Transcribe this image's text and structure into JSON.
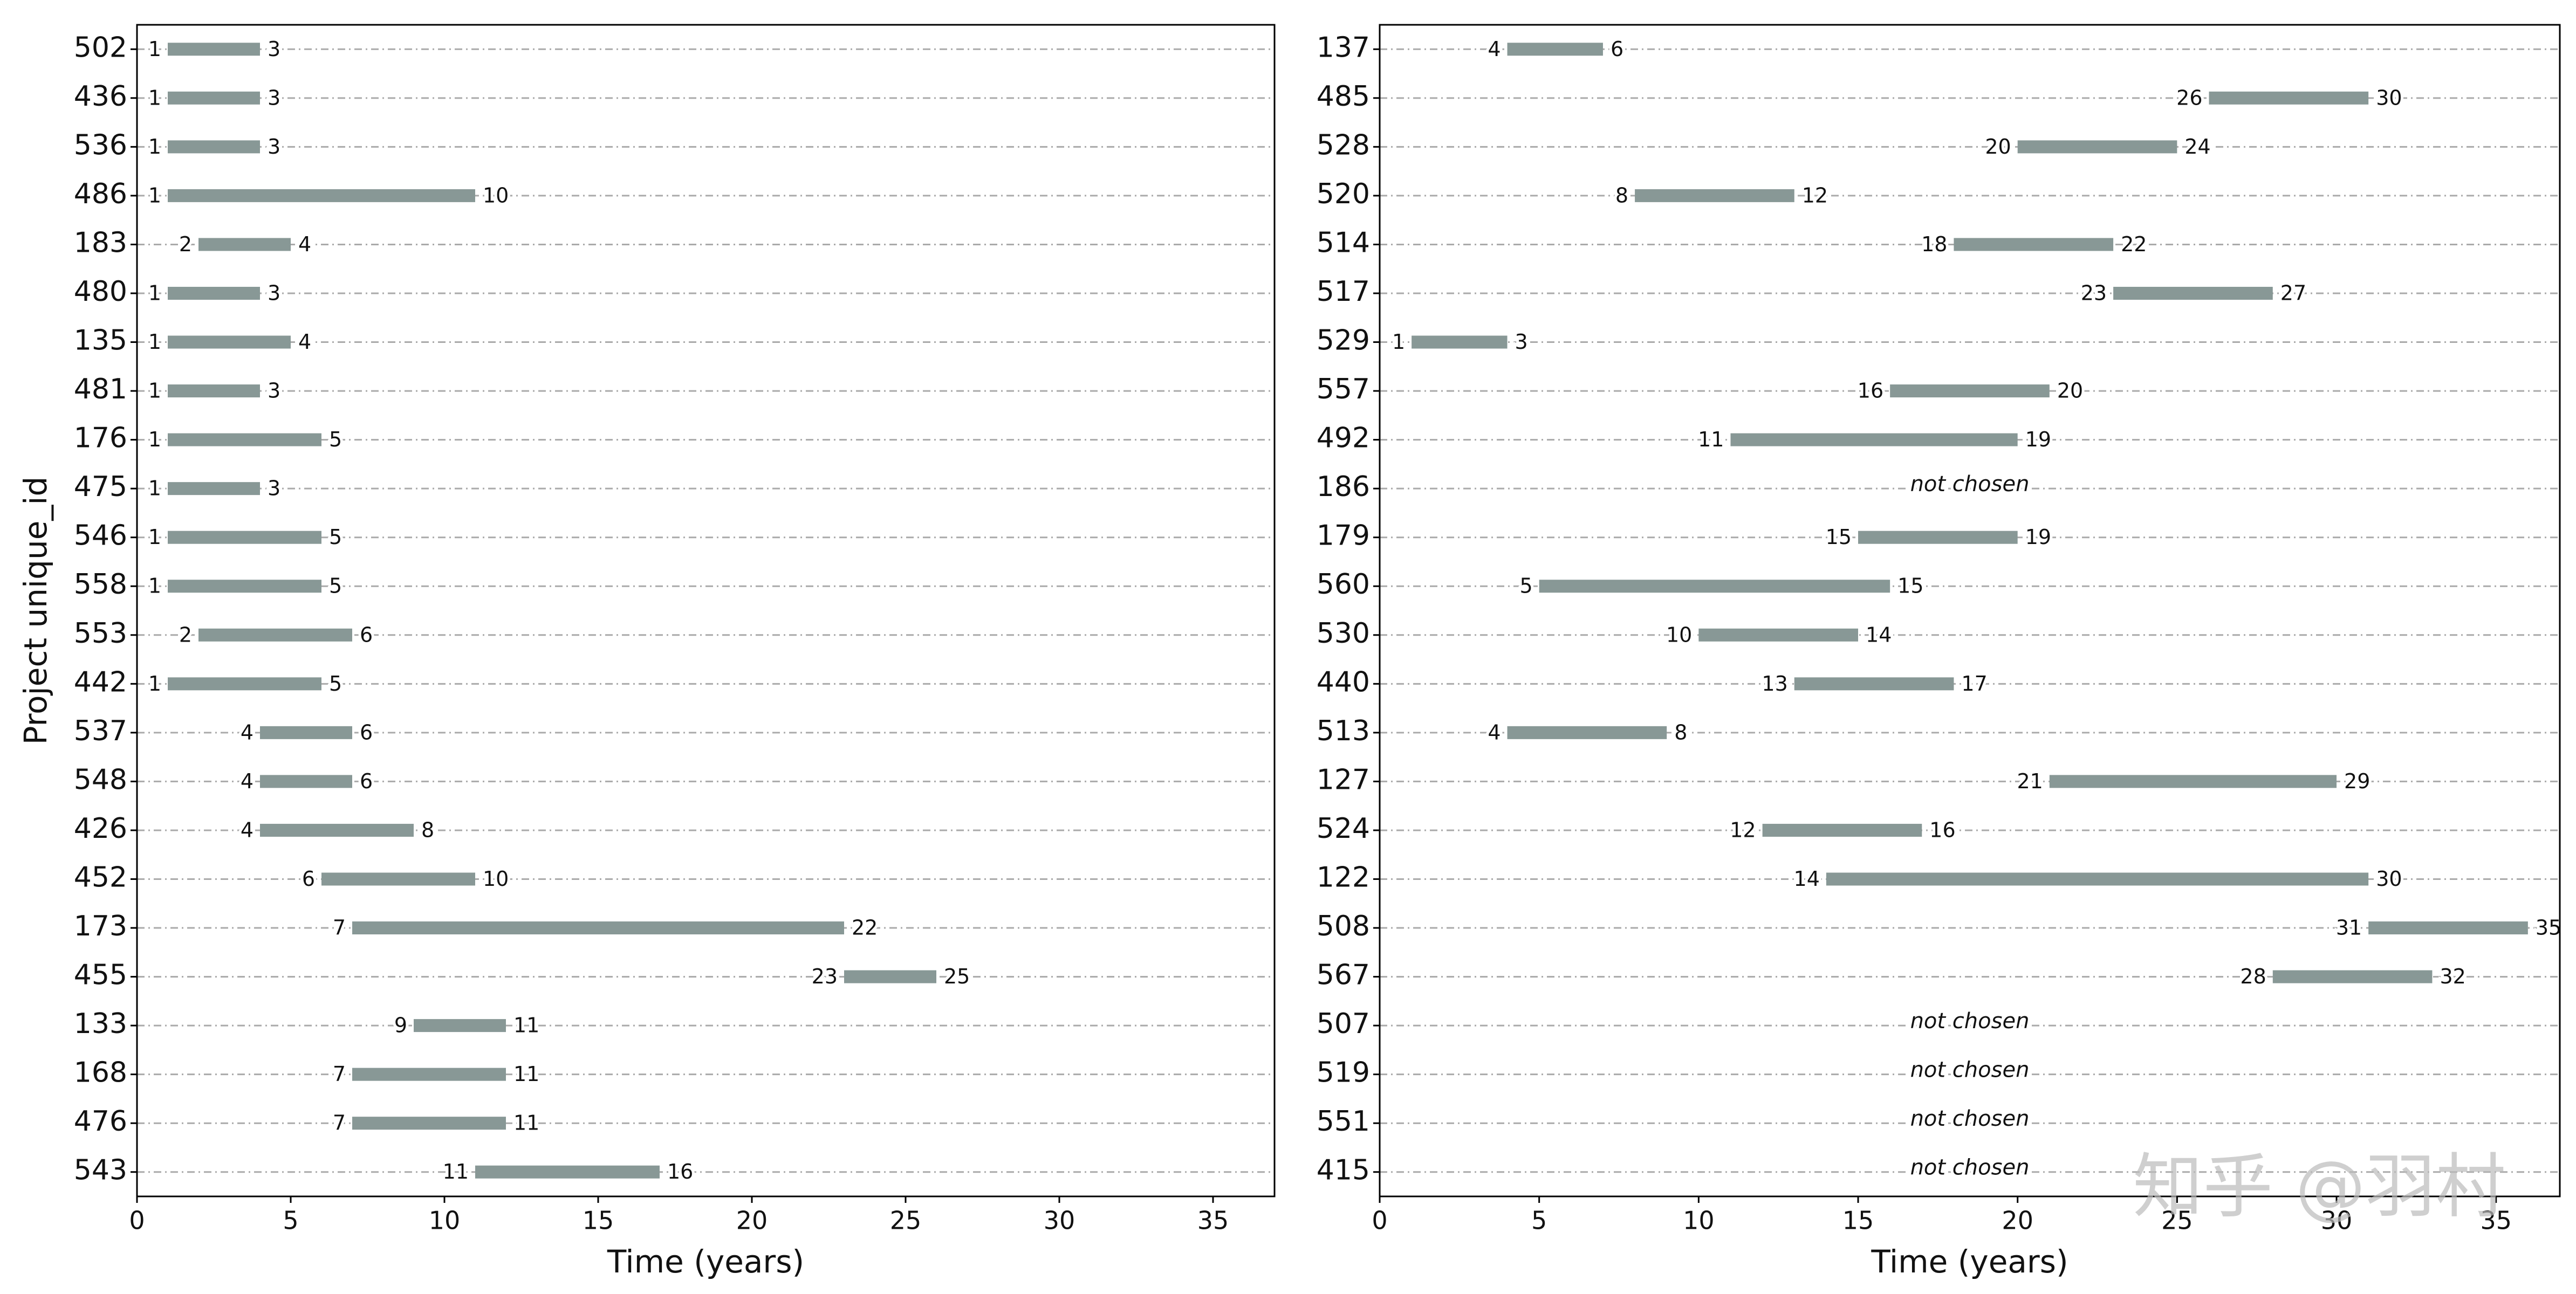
{
  "chart_data": [
    {
      "type": "gantt",
      "ylabel": "Project unique_id",
      "xlabel": "Time (years)",
      "categories": [
        "502",
        "436",
        "536",
        "486",
        "183",
        "480",
        "135",
        "481",
        "176",
        "475",
        "546",
        "558",
        "553",
        "442",
        "537",
        "548",
        "426",
        "452",
        "173",
        "455",
        "133",
        "168",
        "476",
        "543"
      ],
      "start": [
        1,
        1,
        1,
        1,
        2,
        1,
        1,
        1,
        1,
        1,
        1,
        1,
        2,
        1,
        4,
        4,
        4,
        6,
        7,
        23,
        9,
        7,
        7,
        11
      ],
      "end": [
        3,
        3,
        3,
        10,
        4,
        3,
        4,
        3,
        5,
        3,
        5,
        5,
        6,
        5,
        6,
        6,
        8,
        10,
        22,
        25,
        11,
        11,
        11,
        16
      ],
      "color": "#889896",
      "xlim": [
        0,
        37
      ],
      "xticks": [
        0,
        5,
        10,
        15,
        20,
        25,
        30,
        35
      ],
      "grid": true
    },
    {
      "type": "gantt",
      "xlabel": "Time (years)",
      "categories": [
        "137",
        "485",
        "528",
        "520",
        "514",
        "517",
        "529",
        "557",
        "492",
        "186",
        "179",
        "560",
        "530",
        "440",
        "513",
        "127",
        "524",
        "122",
        "508",
        "567",
        "507",
        "519",
        "551",
        "415"
      ],
      "start": [
        4,
        26,
        20,
        8,
        18,
        23,
        1,
        16,
        11,
        null,
        15,
        5,
        10,
        13,
        4,
        21,
        12,
        14,
        31,
        28,
        null,
        null,
        null,
        null
      ],
      "end": [
        6,
        30,
        24,
        12,
        22,
        27,
        3,
        20,
        19,
        null,
        19,
        15,
        14,
        17,
        8,
        29,
        16,
        30,
        35,
        32,
        null,
        null,
        null,
        null
      ],
      "null_label": "not chosen",
      "color": "#889896",
      "xlim": [
        0,
        37
      ],
      "xticks": [
        0,
        5,
        10,
        15,
        20,
        25,
        30,
        35
      ],
      "grid": true
    }
  ],
  "watermark": "知乎 @羽村"
}
